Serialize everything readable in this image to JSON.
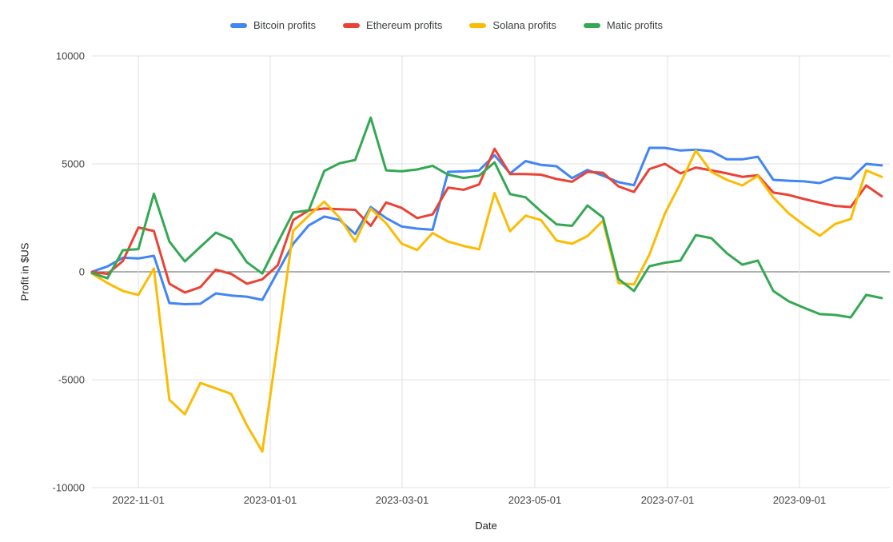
{
  "chart_data": {
    "type": "line",
    "title": "",
    "xlabel": "Date",
    "ylabel": "Profit in $US",
    "ylim": [
      -10000,
      10000
    ],
    "grid": true,
    "legend_position": "top",
    "background_color": "#ffffff",
    "gridline_color": "#e0e0e0",
    "zero_line_color": "#616161",
    "tick_label_color": "#424242",
    "axis_title_color": "#202124",
    "y_ticks": [
      10000,
      5000,
      0,
      -5000,
      -10000
    ],
    "y_tick_labels": [
      "10000",
      "5000",
      "0",
      "-5000",
      "-10000"
    ],
    "x_tick_labels": [
      "2022-11-01",
      "2023-01-01",
      "2023-03-01",
      "2023-05-01",
      "2023-07-01",
      "2023-09-01"
    ],
    "x": [
      "2022-10-10",
      "2022-10-17",
      "2022-10-24",
      "2022-10-31",
      "2022-11-07",
      "2022-11-14",
      "2022-11-21",
      "2022-11-28",
      "2022-12-05",
      "2022-12-12",
      "2022-12-19",
      "2022-12-26",
      "2023-01-02",
      "2023-01-09",
      "2023-01-16",
      "2023-01-23",
      "2023-01-30",
      "2023-02-06",
      "2023-02-13",
      "2023-02-20",
      "2023-02-27",
      "2023-03-06",
      "2023-03-13",
      "2023-03-20",
      "2023-03-27",
      "2023-04-03",
      "2023-04-10",
      "2023-04-17",
      "2023-04-24",
      "2023-05-01",
      "2023-05-08",
      "2023-05-15",
      "2023-05-22",
      "2023-05-29",
      "2023-06-05",
      "2023-06-12",
      "2023-06-19",
      "2023-06-26",
      "2023-07-03",
      "2023-07-10",
      "2023-07-17",
      "2023-07-24",
      "2023-07-31",
      "2023-08-07",
      "2023-08-14",
      "2023-08-21",
      "2023-08-28",
      "2023-09-04",
      "2023-09-11",
      "2023-09-18",
      "2023-09-25",
      "2023-10-02"
    ],
    "series": [
      {
        "name": "Bitcoin profits",
        "color": "#4285F4",
        "values": [
          0,
          250,
          650,
          620,
          740,
          -1450,
          -1500,
          -1480,
          -1000,
          -1100,
          -1150,
          -1300,
          0,
          1300,
          2150,
          2560,
          2400,
          1750,
          3000,
          2490,
          2100,
          2000,
          1950,
          4630,
          4650,
          4700,
          5400,
          4560,
          5130,
          4950,
          4890,
          4340,
          4720,
          4450,
          4150,
          4010,
          5740,
          5740,
          5620,
          5660,
          5590,
          5210,
          5210,
          5330,
          4260,
          4220,
          4190,
          4110,
          4370,
          4300,
          5000,
          4930
        ]
      },
      {
        "name": "Ethereum profits",
        "color": "#EA4335",
        "values": [
          0,
          -100,
          500,
          2050,
          1890,
          -550,
          -960,
          -710,
          100,
          -100,
          -550,
          -350,
          300,
          2400,
          2850,
          2930,
          2900,
          2870,
          2130,
          3210,
          2960,
          2490,
          2660,
          3900,
          3800,
          4050,
          5700,
          4530,
          4530,
          4500,
          4300,
          4170,
          4630,
          4590,
          3960,
          3700,
          4760,
          5000,
          4560,
          4830,
          4700,
          4560,
          4400,
          4470,
          3670,
          3560,
          3370,
          3200,
          3050,
          3000,
          4000,
          3500
        ]
      },
      {
        "name": "Solana profits",
        "color": "#FBBC04",
        "values": [
          -80,
          -520,
          -890,
          -1070,
          150,
          -5930,
          -6600,
          -5150,
          -5400,
          -5660,
          -7100,
          -8330,
          -3300,
          1900,
          2600,
          3250,
          2500,
          1400,
          2930,
          2250,
          1300,
          1010,
          1800,
          1400,
          1200,
          1040,
          3650,
          1880,
          2600,
          2400,
          1450,
          1300,
          1650,
          2370,
          -520,
          -590,
          800,
          2700,
          4100,
          5620,
          4630,
          4260,
          4000,
          4440,
          3440,
          2700,
          2160,
          1670,
          2220,
          2450,
          4700,
          4400
        ]
      },
      {
        "name": "Matic profits",
        "color": "#34A853",
        "values": [
          -50,
          -300,
          1000,
          1050,
          3620,
          1400,
          480,
          1150,
          1815,
          1500,
          450,
          -80,
          1350,
          2750,
          2850,
          4670,
          5030,
          5180,
          7140,
          4700,
          4660,
          4740,
          4910,
          4500,
          4350,
          4450,
          5070,
          3600,
          3450,
          2800,
          2200,
          2130,
          3070,
          2520,
          -330,
          -890,
          260,
          420,
          520,
          1700,
          1560,
          860,
          330,
          520,
          -890,
          -1370,
          -1670,
          -1960,
          -2000,
          -2110,
          -1070,
          -1220
        ]
      }
    ]
  }
}
